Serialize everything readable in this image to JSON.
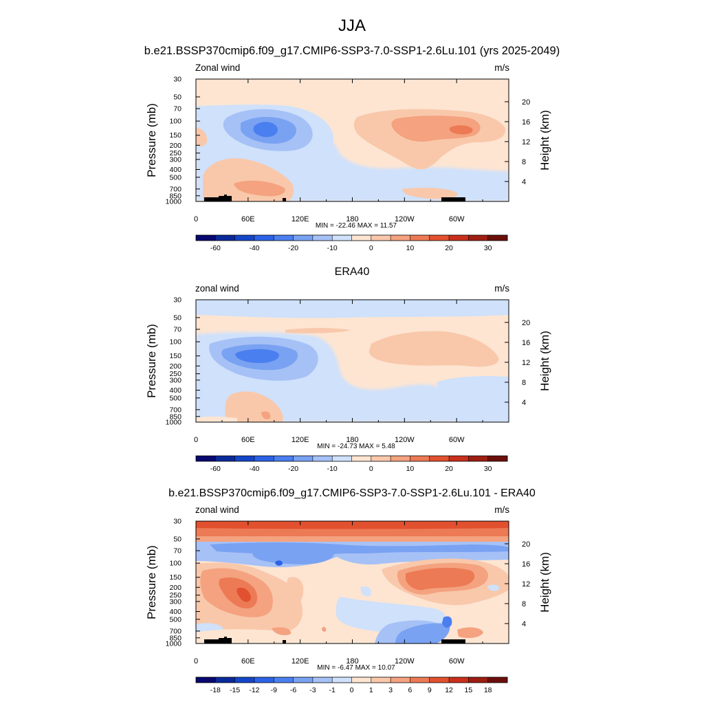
{
  "figure": {
    "season": "JJA",
    "case_title": "b.e21.BSSP370cmip6.f09_g17.CMIP6-SSP3-7.0-SSP1-2.6Lu.101 (yrs 2025-2049)",
    "units_label": "m/s",
    "left_axis_label": "Pressure (mb)",
    "right_axis_label": "Height (km)"
  },
  "chart_data": [
    {
      "type": "contour",
      "panel_title": "",
      "variable_label": "Zonal wind",
      "units": "m/s",
      "stats": "MIN = -22.46  MAX =  11.57",
      "min": -22.46,
      "max": 11.57,
      "x_ticks": [
        "0",
        "60E",
        "120E",
        "180",
        "120W",
        "60W"
      ],
      "x_range_deg": [
        0,
        360
      ],
      "y_ticks": [
        "30",
        "50",
        "70",
        "100",
        "150",
        "200",
        "250",
        "300",
        "400",
        "500",
        "700",
        "850",
        "1000"
      ],
      "y_scale": "log",
      "y_range_mb": [
        1000,
        30
      ],
      "right_ticks_km": [
        "20",
        "16",
        "12",
        "8",
        "4"
      ],
      "colorbar_levels": [
        -70,
        -60,
        -50,
        -40,
        -30,
        -20,
        -15,
        -10,
        -5,
        0,
        5,
        10,
        15,
        20,
        25,
        30,
        35
      ],
      "colorbar_labels": [
        "-60",
        "-40",
        "-20",
        "-10",
        "0",
        "10",
        "20",
        "30"
      ],
      "features": [
        {
          "kind": "easterly_core",
          "lon": 82,
          "p_mb": 150,
          "value": -22.46
        },
        {
          "kind": "westerly_core",
          "lon": 310,
          "p_mb": 150,
          "value": 11.57
        },
        {
          "kind": "westerly_lowlevel",
          "lon": 85,
          "p_mb": 700,
          "value": 6
        }
      ]
    },
    {
      "type": "contour",
      "panel_title": "ERA40",
      "variable_label": "zonal wind",
      "units": "m/s",
      "stats": "MIN = -24.73  MAX =   5.48",
      "min": -24.73,
      "max": 5.48,
      "x_ticks": [
        "0",
        "60E",
        "120E",
        "180",
        "120W",
        "60W"
      ],
      "x_range_deg": [
        0,
        360
      ],
      "y_ticks": [
        "30",
        "50",
        "70",
        "100",
        "150",
        "200",
        "250",
        "300",
        "400",
        "500",
        "700",
        "850",
        "1000"
      ],
      "y_scale": "log",
      "y_range_mb": [
        1000,
        30
      ],
      "right_ticks_km": [
        "20",
        "16",
        "12",
        "8",
        "4"
      ],
      "colorbar_levels": [
        -70,
        -60,
        -50,
        -40,
        -30,
        -20,
        -15,
        -10,
        -5,
        0,
        5,
        10,
        15,
        20,
        25,
        30,
        35
      ],
      "colorbar_labels": [
        "-60",
        "-40",
        "-20",
        "-10",
        "0",
        "10",
        "20",
        "30"
      ],
      "features": [
        {
          "kind": "easterly_core",
          "lon": 85,
          "p_mb": 150,
          "value": -24.73
        },
        {
          "kind": "westerly_region",
          "lon": 245,
          "p_mb": 120,
          "value": 5.48
        }
      ]
    },
    {
      "type": "contour",
      "panel_title": "b.e21.BSSP370cmip6.f09_g17.CMIP6-SSP3-7.0-SSP1-2.6Lu.101 - ERA40",
      "variable_label": "zonal wind",
      "units": "m/s",
      "stats": "MIN =  -6.47  MAX =  10.07",
      "min": -6.47,
      "max": 10.07,
      "x_ticks": [
        "0",
        "60E",
        "120E",
        "180",
        "120W",
        "60W"
      ],
      "x_range_deg": [
        0,
        360
      ],
      "y_ticks": [
        "30",
        "50",
        "70",
        "100",
        "150",
        "200",
        "250",
        "300",
        "400",
        "500",
        "700",
        "850",
        "1000"
      ],
      "y_scale": "log",
      "y_range_mb": [
        1000,
        30
      ],
      "right_ticks_km": [
        "20",
        "16",
        "12",
        "8",
        "4"
      ],
      "colorbar_levels": [
        -21,
        -18,
        -15,
        -12,
        -9,
        -6,
        -3,
        -1,
        0,
        1,
        3,
        6,
        9,
        12,
        15,
        18,
        21
      ],
      "colorbar_labels": [
        "-18",
        "-15",
        "-12",
        "-9",
        "-6",
        "-3",
        "-1",
        "0",
        "1",
        "3",
        "6",
        "9",
        "12",
        "15",
        "18"
      ],
      "features": [
        {
          "kind": "positive_core",
          "lon": 60,
          "p_mb": 250,
          "value": 10.07
        },
        {
          "kind": "positive_core",
          "lon": 290,
          "p_mb": 150,
          "value": 9
        },
        {
          "kind": "negative_core",
          "lon": 95,
          "p_mb": 90,
          "value": -6.47
        },
        {
          "kind": "positive_band",
          "lon": 180,
          "p_mb": 30,
          "value": 9
        }
      ]
    }
  ],
  "colors": {
    "colorbar": [
      "#08086e",
      "#0a2a9a",
      "#1446c8",
      "#2c62e6",
      "#4a7ff0",
      "#7aa2f2",
      "#a6c1f6",
      "#cfe1fb",
      "#fde5d2",
      "#f9c8ab",
      "#f4a27f",
      "#ec7a55",
      "#e2512f",
      "#c9301b",
      "#9e1e12",
      "#6b0f0a"
    ],
    "topography": "#000000",
    "frame": "#000000"
  }
}
